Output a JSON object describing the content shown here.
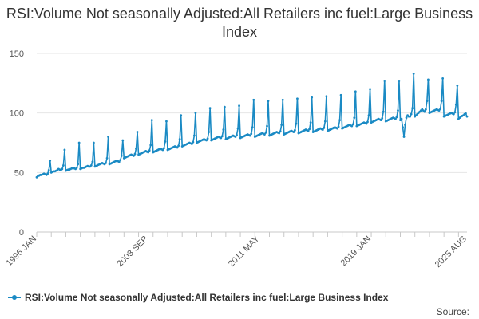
{
  "chart_data": {
    "type": "line",
    "title": "RSI:Volume Not seasonally Adjusted:All Retailers inc fuel:Large Business Index",
    "subtitle": "",
    "xlabel": "",
    "ylabel": "",
    "ylim": [
      0,
      150
    ],
    "yticks": [
      0,
      50,
      100,
      150
    ],
    "x_range": [
      "1996-01",
      "2025-08"
    ],
    "x_tick_labels": [
      "1996 JAN",
      "2003 SEP",
      "2011 MAY",
      "2019 JAN",
      "2025 AUG"
    ],
    "grid": "horizontal",
    "legend_position": "bottom-left",
    "series": [
      {
        "name": "RSI:Volume Not seasonally Adjusted:All Retailers inc fuel:Large Business Index",
        "color": "#1a8ac4",
        "frequency": "monthly",
        "start": "1996-01",
        "values": [
          46.0,
          47.0,
          47.5,
          48.0,
          48.0,
          48.5,
          49.0,
          48.5,
          48.0,
          49.0,
          52.0,
          60.0,
          50.0,
          50.5,
          51.0,
          51.0,
          51.5,
          52.0,
          53.0,
          52.5,
          52.0,
          53.0,
          56.0,
          69.0,
          51.5,
          52.0,
          52.5,
          52.5,
          53.0,
          53.5,
          54.0,
          53.5,
          53.0,
          54.0,
          57.0,
          75.0,
          53.0,
          53.5,
          54.0,
          54.0,
          54.5,
          55.0,
          55.5,
          55.0,
          55.0,
          56.0,
          59.0,
          75.0,
          55.0,
          55.5,
          56.0,
          56.5,
          57.0,
          57.5,
          58.0,
          57.5,
          57.0,
          58.0,
          62.0,
          80.0,
          57.0,
          57.5,
          58.0,
          58.5,
          59.0,
          59.5,
          60.0,
          59.5,
          59.0,
          60.5,
          64.0,
          77.0,
          62.0,
          62.5,
          63.0,
          63.5,
          64.0,
          64.5,
          65.0,
          64.5,
          64.0,
          65.5,
          70.0,
          84.0,
          65.0,
          65.5,
          66.0,
          66.5,
          67.0,
          67.5,
          68.0,
          67.5,
          67.0,
          68.5,
          73.0,
          94.0,
          67.0,
          67.5,
          68.0,
          68.5,
          69.0,
          69.5,
          70.0,
          69.5,
          69.0,
          70.5,
          76.0,
          93.0,
          69.0,
          69.5,
          70.0,
          70.5,
          71.0,
          71.5,
          72.0,
          71.5,
          71.0,
          72.5,
          78.0,
          98.0,
          72.0,
          72.5,
          73.0,
          73.5,
          74.0,
          74.5,
          75.0,
          74.5,
          74.0,
          75.5,
          81.0,
          100.0,
          75.0,
          75.5,
          76.0,
          76.5,
          77.0,
          77.5,
          78.0,
          77.5,
          77.0,
          78.5,
          84.0,
          104.0,
          77.0,
          77.5,
          78.0,
          78.5,
          79.0,
          79.5,
          80.0,
          79.5,
          79.0,
          80.5,
          86.0,
          105.0,
          78.0,
          78.5,
          79.0,
          79.5,
          80.0,
          80.5,
          81.0,
          80.5,
          80.0,
          81.5,
          87.0,
          106.0,
          79.0,
          79.5,
          80.0,
          80.5,
          81.0,
          81.5,
          82.0,
          81.5,
          81.0,
          82.5,
          88.0,
          111.0,
          80.0,
          80.5,
          81.0,
          81.5,
          82.0,
          82.5,
          83.0,
          82.5,
          82.0,
          83.5,
          89.0,
          110.0,
          81.0,
          81.5,
          82.0,
          82.5,
          83.0,
          83.5,
          84.0,
          83.5,
          83.0,
          84.5,
          90.0,
          111.0,
          82.0,
          82.5,
          83.0,
          83.5,
          84.0,
          84.5,
          85.0,
          84.5,
          84.0,
          85.5,
          91.0,
          112.0,
          83.0,
          83.5,
          84.0,
          84.5,
          85.0,
          85.5,
          86.0,
          85.5,
          85.0,
          86.5,
          92.0,
          113.0,
          84.0,
          84.5,
          85.0,
          85.5,
          86.0,
          86.5,
          87.0,
          86.5,
          86.0,
          87.5,
          93.0,
          114.0,
          85.0,
          85.5,
          86.0,
          86.5,
          87.0,
          87.5,
          88.0,
          87.5,
          87.0,
          88.5,
          94.0,
          115.0,
          87.0,
          87.5,
          88.0,
          88.5,
          89.0,
          89.5,
          90.0,
          89.5,
          89.0,
          90.5,
          96.0,
          118.0,
          89.0,
          89.5,
          90.0,
          90.5,
          91.0,
          91.5,
          92.0,
          91.5,
          91.0,
          92.5,
          98.0,
          120.0,
          92.0,
          92.5,
          93.0,
          93.5,
          94.0,
          94.5,
          95.0,
          94.5,
          94.0,
          95.5,
          101.0,
          127.0,
          93.0,
          93.5,
          94.0,
          94.5,
          95.0,
          95.5,
          96.0,
          95.5,
          95.0,
          96.5,
          102.0,
          127.0,
          94.0,
          95.0,
          88.0,
          80.0,
          90.0,
          96.0,
          98.0,
          97.0,
          97.0,
          99.0,
          104.0,
          133.0,
          97.0,
          98.0,
          99.0,
          100.0,
          101.0,
          102.0,
          103.0,
          102.0,
          101.0,
          103.0,
          110.0,
          128.0,
          100.0,
          100.5,
          101.0,
          101.5,
          102.0,
          102.5,
          103.0,
          102.5,
          102.0,
          103.5,
          110.0,
          129.0,
          97.0,
          97.5,
          98.0,
          98.5,
          99.0,
          99.5,
          100.0,
          99.5,
          99.0,
          100.5,
          107.0,
          123.0,
          95.0,
          96.0,
          97.0,
          97.5,
          98.0,
          99.0,
          99.5,
          97.0
        ]
      }
    ]
  },
  "legend": {
    "label": "RSI:Volume Not seasonally Adjusted:All Retailers inc fuel:Large Business Index"
  },
  "source": "Source:"
}
